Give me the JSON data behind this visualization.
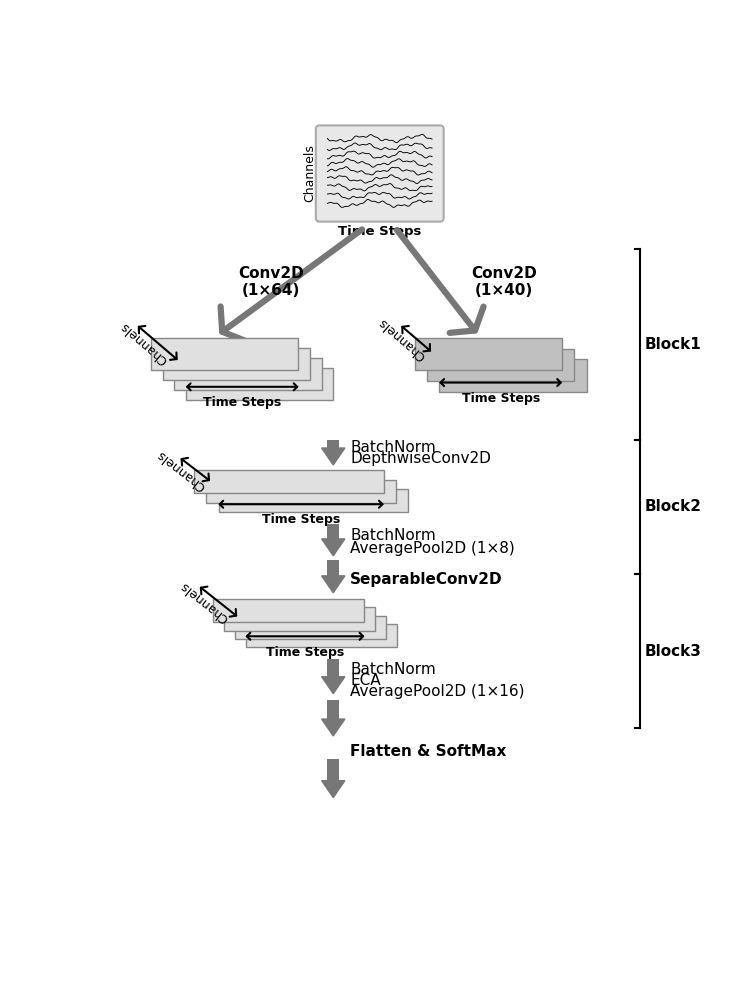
{
  "bg_color": "#ffffff",
  "arrow_color": "#777777",
  "block_color_light": "#e0e0e0",
  "block_color_medium": "#c0c0c0",
  "eeg_box_color": "#e8e8e8",
  "text_color": "#000000",
  "fig_width": 7.44,
  "fig_height": 10.0,
  "block_labels": [
    "Block1",
    "Block2",
    "Block3"
  ],
  "conv_label_left": "Conv2D\n(1×64)",
  "conv_label_right": "Conv2D\n(1×40)",
  "label_batchnorm_depthwise_1": "BatchNorm",
  "label_batchnorm_depthwise_2": "DepthwiseConv2D",
  "label_batchnorm_avgpool_1": "BatchNorm",
  "label_batchnorm_avgpool_2": "AveragePool2D (1×8)",
  "label_separable": "SeparableConv2D",
  "label_batchnorm_eca_1": "BatchNorm",
  "label_batchnorm_eca_2": "ECA",
  "label_batchnorm_eca_3": "AveragePool2D (1×16)",
  "label_flatten": "Flatten & SoftMax",
  "label_timesteps": "Time Steps",
  "label_channels": "Channels"
}
